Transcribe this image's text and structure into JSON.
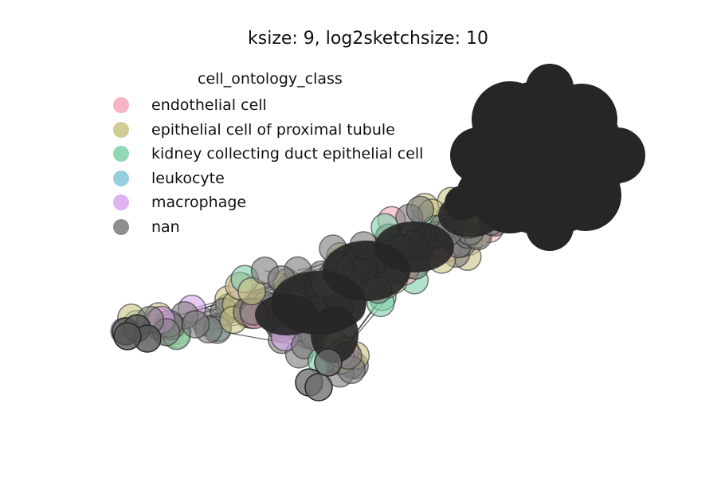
{
  "title": "ksize: 9, log2sketchsize: 10",
  "legend": {
    "title": "cell_ontology_class",
    "items": [
      {
        "label": "endothelial cell",
        "color": "#f4a6b7"
      },
      {
        "label": "epithelial cell of proximal tubule",
        "color": "#c9c383"
      },
      {
        "label": "kidney collecting duct epithelial cell",
        "color": "#7fcfa8"
      },
      {
        "label": "leukocyte",
        "color": "#86c7da"
      },
      {
        "label": "macrophage",
        "color": "#d9a6ec"
      },
      {
        "label": "nan",
        "color": "#7a7a7a"
      }
    ]
  },
  "colors": {
    "node_edge": "#262626",
    "dense_cluster": "#262626"
  }
}
